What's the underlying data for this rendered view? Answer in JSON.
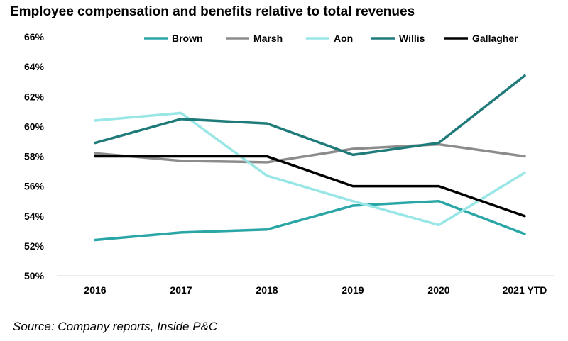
{
  "chart_data": {
    "type": "line",
    "title": "Employee compensation and benefits relative to total revenues",
    "categories": [
      "2016",
      "2017",
      "2018",
      "2019",
      "2020",
      "2021 YTD"
    ],
    "ylim": [
      50,
      66
    ],
    "yticks": [
      50,
      52,
      54,
      56,
      58,
      60,
      62,
      64,
      66
    ],
    "ytick_labels": [
      "50%",
      "52%",
      "54%",
      "56%",
      "58%",
      "60%",
      "62%",
      "64%",
      "66%"
    ],
    "xlabel": "",
    "ylabel": "",
    "grid": false,
    "legend_position": "top",
    "series": [
      {
        "name": "Brown",
        "color": "#2aa6a6",
        "values": [
          52.4,
          52.9,
          53.1,
          54.7,
          55.0,
          52.8
        ]
      },
      {
        "name": "Marsh",
        "color": "#8c8c8c",
        "values": [
          58.2,
          57.7,
          57.6,
          58.5,
          58.8,
          58.0
        ]
      },
      {
        "name": "Aon",
        "color": "#99e6e6",
        "values": [
          60.4,
          60.9,
          56.7,
          55.0,
          53.4,
          56.9
        ]
      },
      {
        "name": "Willis",
        "color": "#1f7a7a",
        "values": [
          58.9,
          60.5,
          60.2,
          58.1,
          58.9,
          63.4
        ]
      },
      {
        "name": "Gallagher",
        "color": "#000000",
        "values": [
          58.0,
          58.0,
          58.0,
          56.0,
          56.0,
          54.0
        ]
      }
    ]
  },
  "source": "Source: Company reports, Inside P&C"
}
